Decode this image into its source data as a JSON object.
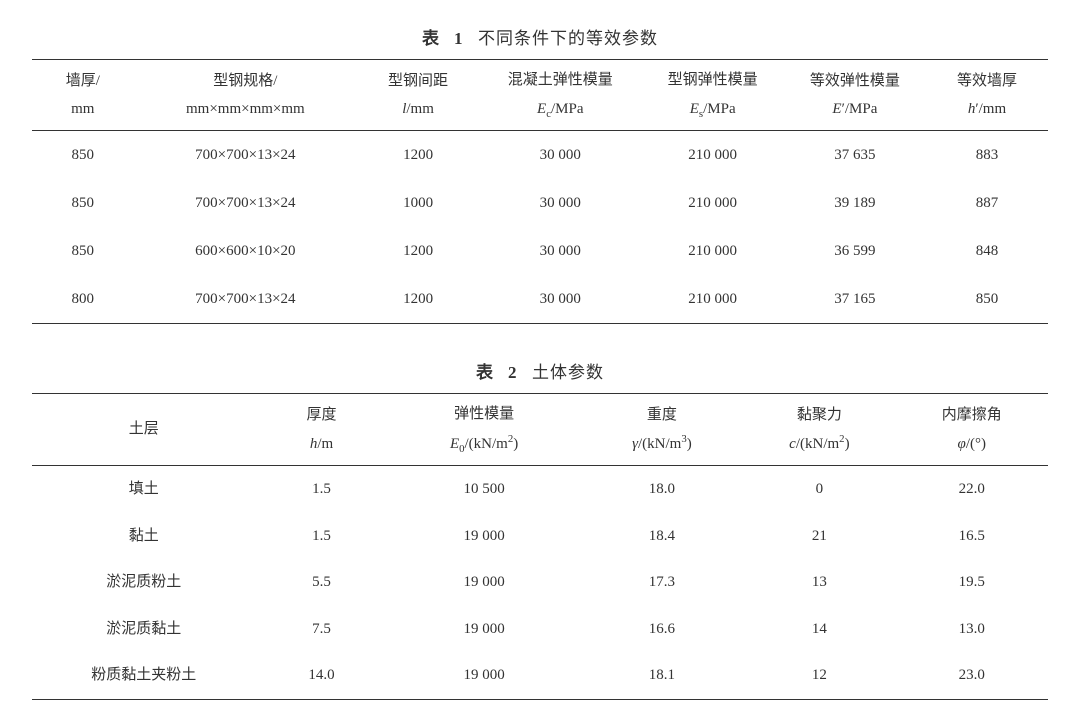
{
  "table1": {
    "caption_label": "表",
    "caption_num": "1",
    "caption_title": "不同条件下的等效参数",
    "col_widths_pct": [
      10,
      22,
      12,
      16,
      14,
      14,
      12
    ],
    "headers": [
      {
        "l1": "墙厚/",
        "l2": "mm"
      },
      {
        "l1": "型钢规格/",
        "l2": "mm×mm×mm×mm"
      },
      {
        "l1": "型钢间距",
        "l2_html": "<i>l</i>/mm"
      },
      {
        "l1": "混凝土弹性模量",
        "l2_html": "<i>E</i><sub>c</sub>/MPa"
      },
      {
        "l1": "型钢弹性模量",
        "l2_html": "<i>E</i><sub>s</sub>/MPa"
      },
      {
        "l1": "等效弹性模量",
        "l2_html": "<i>E</i>′/MPa"
      },
      {
        "l1": "等效墙厚",
        "l2_html": "<i>h</i>′/mm"
      }
    ],
    "rows": [
      [
        "850",
        "700×700×13×24",
        "1200",
        "30 000",
        "210 000",
        "37 635",
        "883"
      ],
      [
        "850",
        "700×700×13×24",
        "1000",
        "30 000",
        "210 000",
        "39 189",
        "887"
      ],
      [
        "850",
        "600×600×10×20",
        "1200",
        "30 000",
        "210 000",
        "36 599",
        "848"
      ],
      [
        "800",
        "700×700×13×24",
        "1200",
        "30 000",
        "210 000",
        "37 165",
        "850"
      ]
    ]
  },
  "table2": {
    "caption_label": "表",
    "caption_num": "2",
    "caption_title": "土体参数",
    "col_widths_pct": [
      22,
      13,
      19,
      16,
      15,
      15
    ],
    "headers": [
      {
        "l1": "土层",
        "l2": ""
      },
      {
        "l1": "厚度",
        "l2_html": "<i>h</i>/m"
      },
      {
        "l1": "弹性模量",
        "l2_html": "<i>E</i><sub>0</sub>/(kN/m<sup>2</sup>)"
      },
      {
        "l1": "重度",
        "l2_html": "<i>γ</i>/(kN/m<sup>3</sup>)"
      },
      {
        "l1": "黏聚力",
        "l2_html": "<i>c</i>/(kN/m<sup>2</sup>)"
      },
      {
        "l1": "内摩擦角",
        "l2_html": "<i>φ</i>/(°)"
      }
    ],
    "rows": [
      [
        "填土",
        "1.5",
        "10 500",
        "18.0",
        "0",
        "22.0"
      ],
      [
        "黏土",
        "1.5",
        "19 000",
        "18.4",
        "21",
        "16.5"
      ],
      [
        "淤泥质粉土",
        "5.5",
        "19 000",
        "17.3",
        "13",
        "19.5"
      ],
      [
        "淤泥质黏土",
        "7.5",
        "19 000",
        "16.6",
        "14",
        "13.0"
      ],
      [
        "粉质黏土夹粉土",
        "14.0",
        "19 000",
        "18.1",
        "12",
        "23.0"
      ]
    ]
  }
}
